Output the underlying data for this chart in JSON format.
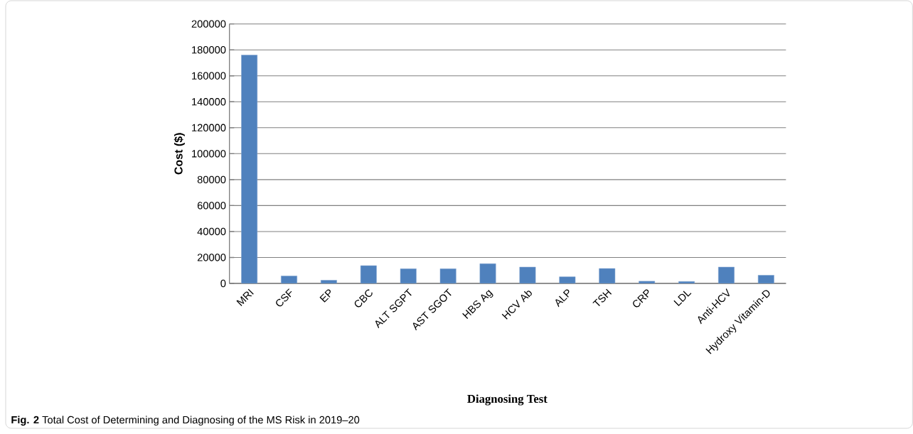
{
  "chart_data": {
    "type": "bar",
    "categories": [
      "MRI",
      "CSF",
      "EP",
      "CBC",
      "ALT SGPT",
      "AST SGOT",
      "HBS Ag",
      "HCV Ab",
      "ALP",
      "TSH",
      "CRP",
      "LDL",
      "Anti-HCV",
      "Hydroxy Vitamin-D"
    ],
    "values": [
      176000,
      5700,
      2400,
      13700,
      11300,
      11300,
      15200,
      12600,
      5100,
      11500,
      1700,
      1500,
      12600,
      6300
    ],
    "color": "#4f81bd",
    "ylabel": "Cost ($)",
    "xlabel": "Diagnosing Test",
    "ylim": [
      0,
      200000
    ],
    "yticks": [
      0,
      20000,
      40000,
      60000,
      80000,
      100000,
      120000,
      140000,
      160000,
      180000,
      200000
    ],
    "grid": "y",
    "annotations": [
      "**Fig. 2** Total Cost of Determining and Diagnosing of the MS Risk in 2019–20"
    ]
  }
}
